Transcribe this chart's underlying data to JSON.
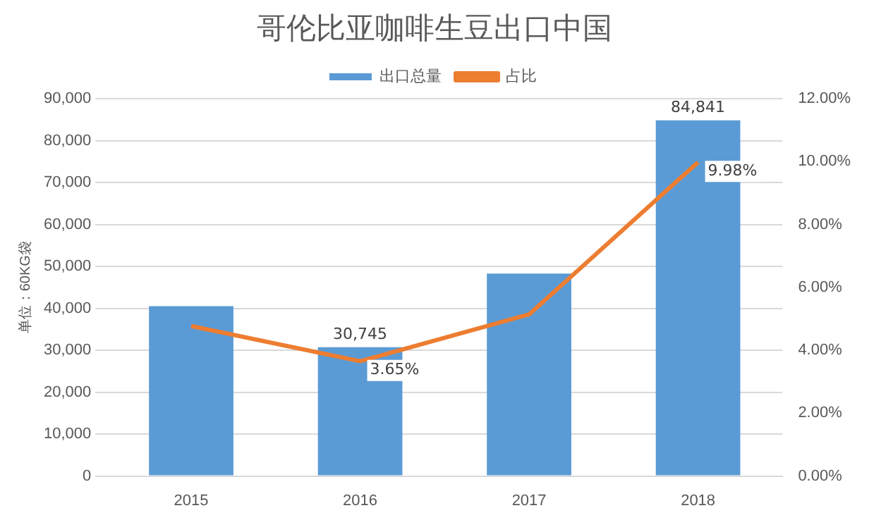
{
  "chart_data": {
    "type": "bar",
    "title": "哥伦比亚咖啡生豆出口中国",
    "ylabel": "单位：60KG袋",
    "categories": [
      "2015",
      "2016",
      "2017",
      "2018"
    ],
    "series": [
      {
        "name": "出口总量",
        "color": "#5b9bd5",
        "values": [
          40500,
          30745,
          48300,
          84841
        ],
        "value_labels": [
          null,
          "30,745",
          null,
          "84,841"
        ]
      },
      {
        "name": "占比",
        "type": "line",
        "axis": "y2",
        "color": "#ed7d31",
        "values": [
          4.77,
          3.65,
          5.14,
          9.98
        ],
        "value_labels": [
          null,
          "3.65%",
          null,
          "9.98%"
        ]
      }
    ],
    "ylim": [
      0,
      90000
    ],
    "yticks": [
      {
        "value": 0,
        "label": "0"
      },
      {
        "value": 10000,
        "label": "10,000"
      },
      {
        "value": 20000,
        "label": "20,000"
      },
      {
        "value": 30000,
        "label": "30,000"
      },
      {
        "value": 40000,
        "label": "40,000"
      },
      {
        "value": 50000,
        "label": "50,000"
      },
      {
        "value": 60000,
        "label": "60,000"
      },
      {
        "value": 70000,
        "label": "70,000"
      },
      {
        "value": 80000,
        "label": "80,000"
      },
      {
        "value": 90000,
        "label": "90,000"
      }
    ],
    "y2lim": [
      0,
      12
    ],
    "y2ticks": [
      {
        "value": 0,
        "label": "0.00%"
      },
      {
        "value": 2,
        "label": "2.00%"
      },
      {
        "value": 4,
        "label": "4.00%"
      },
      {
        "value": 6,
        "label": "6.00%"
      },
      {
        "value": 8,
        "label": "8.00%"
      },
      {
        "value": 10,
        "label": "10.00%"
      },
      {
        "value": 12,
        "label": "12.00%"
      }
    ],
    "grid": "y",
    "legend": "top",
    "marker": "none"
  }
}
